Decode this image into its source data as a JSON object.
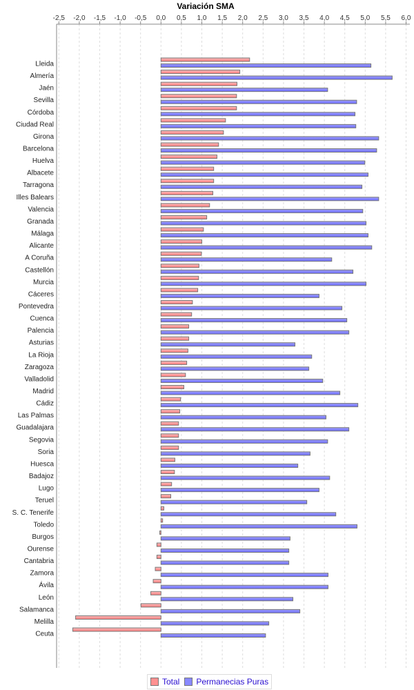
{
  "chart_data": {
    "type": "bar",
    "orientation": "horizontal",
    "title": "Variación SMA",
    "xlabel": "",
    "ylabel": "",
    "xlim": [
      -2.5,
      6.0
    ],
    "x_ticks": [
      "-2,5",
      "-2,0",
      "-1,5",
      "-1,0",
      "-0,5",
      "0,0",
      "0,5",
      "1,0",
      "1,5",
      "2,0",
      "2,5",
      "3,0",
      "3,5",
      "4,0",
      "4,5",
      "5,0",
      "5,5",
      "6,0"
    ],
    "x_tick_values": [
      -2.5,
      -2.0,
      -1.5,
      -1.0,
      -0.5,
      0,
      0.5,
      1.0,
      1.5,
      2.0,
      2.5,
      3.0,
      3.5,
      4.0,
      4.5,
      5.0,
      5.5,
      6.0
    ],
    "grid": true,
    "legend_position": "bottom",
    "categories": [
      "Lleida",
      "Almería",
      "Jaén",
      "Sevilla",
      "Córdoba",
      "Ciudad Real",
      "Girona",
      "Barcelona",
      "Huelva",
      "Albacete",
      "Tarragona",
      "Illes Balears",
      "Valencia",
      "Granada",
      "Málaga",
      "Alicante",
      "A Coruña",
      "Castellón",
      "Murcia",
      "Cáceres",
      "Pontevedra",
      "Cuenca",
      "Palencia",
      "Asturias",
      "La Rioja",
      "Zaragoza",
      "Valladolid",
      "Madrid",
      "Cádiz",
      "Las Palmas",
      "Guadalajara",
      "Segovia",
      "Soria",
      "Huesca",
      "Badajoz",
      "Lugo",
      "Teruel",
      "S. C. Tenerife",
      "Toledo",
      "Burgos",
      "Ourense",
      "Cantabria",
      "Zamora",
      "Ávila",
      "León",
      "Salamanca",
      "Melilla",
      "Ceuta"
    ],
    "series": [
      {
        "name": "Total",
        "color": "#ff8080",
        "values": [
          2.17,
          1.93,
          1.86,
          1.85,
          1.85,
          1.58,
          1.53,
          1.41,
          1.37,
          1.29,
          1.29,
          1.27,
          1.19,
          1.12,
          1.04,
          1.0,
          0.99,
          0.93,
          0.92,
          0.9,
          0.77,
          0.75,
          0.68,
          0.68,
          0.66,
          0.63,
          0.6,
          0.56,
          0.48,
          0.46,
          0.43,
          0.43,
          0.43,
          0.34,
          0.33,
          0.26,
          0.24,
          0.07,
          0.04,
          -0.03,
          -0.1,
          -0.1,
          -0.14,
          -0.19,
          -0.25,
          -0.49,
          -2.09,
          -2.16
        ]
      },
      {
        "name": "Permanecias Puras",
        "color": "#8080ff",
        "values": [
          5.14,
          5.66,
          4.08,
          4.79,
          4.75,
          4.77,
          5.33,
          5.28,
          4.99,
          5.07,
          4.92,
          5.33,
          4.94,
          5.02,
          5.07,
          5.16,
          4.18,
          4.7,
          5.02,
          3.87,
          4.43,
          4.55,
          4.6,
          3.28,
          3.69,
          3.62,
          3.96,
          4.38,
          4.82,
          4.04,
          4.6,
          4.08,
          3.65,
          3.35,
          4.13,
          3.87,
          3.57,
          4.28,
          4.8,
          3.16,
          3.13,
          3.13,
          4.09,
          4.09,
          3.23,
          3.4,
          2.64,
          2.56
        ]
      }
    ]
  }
}
